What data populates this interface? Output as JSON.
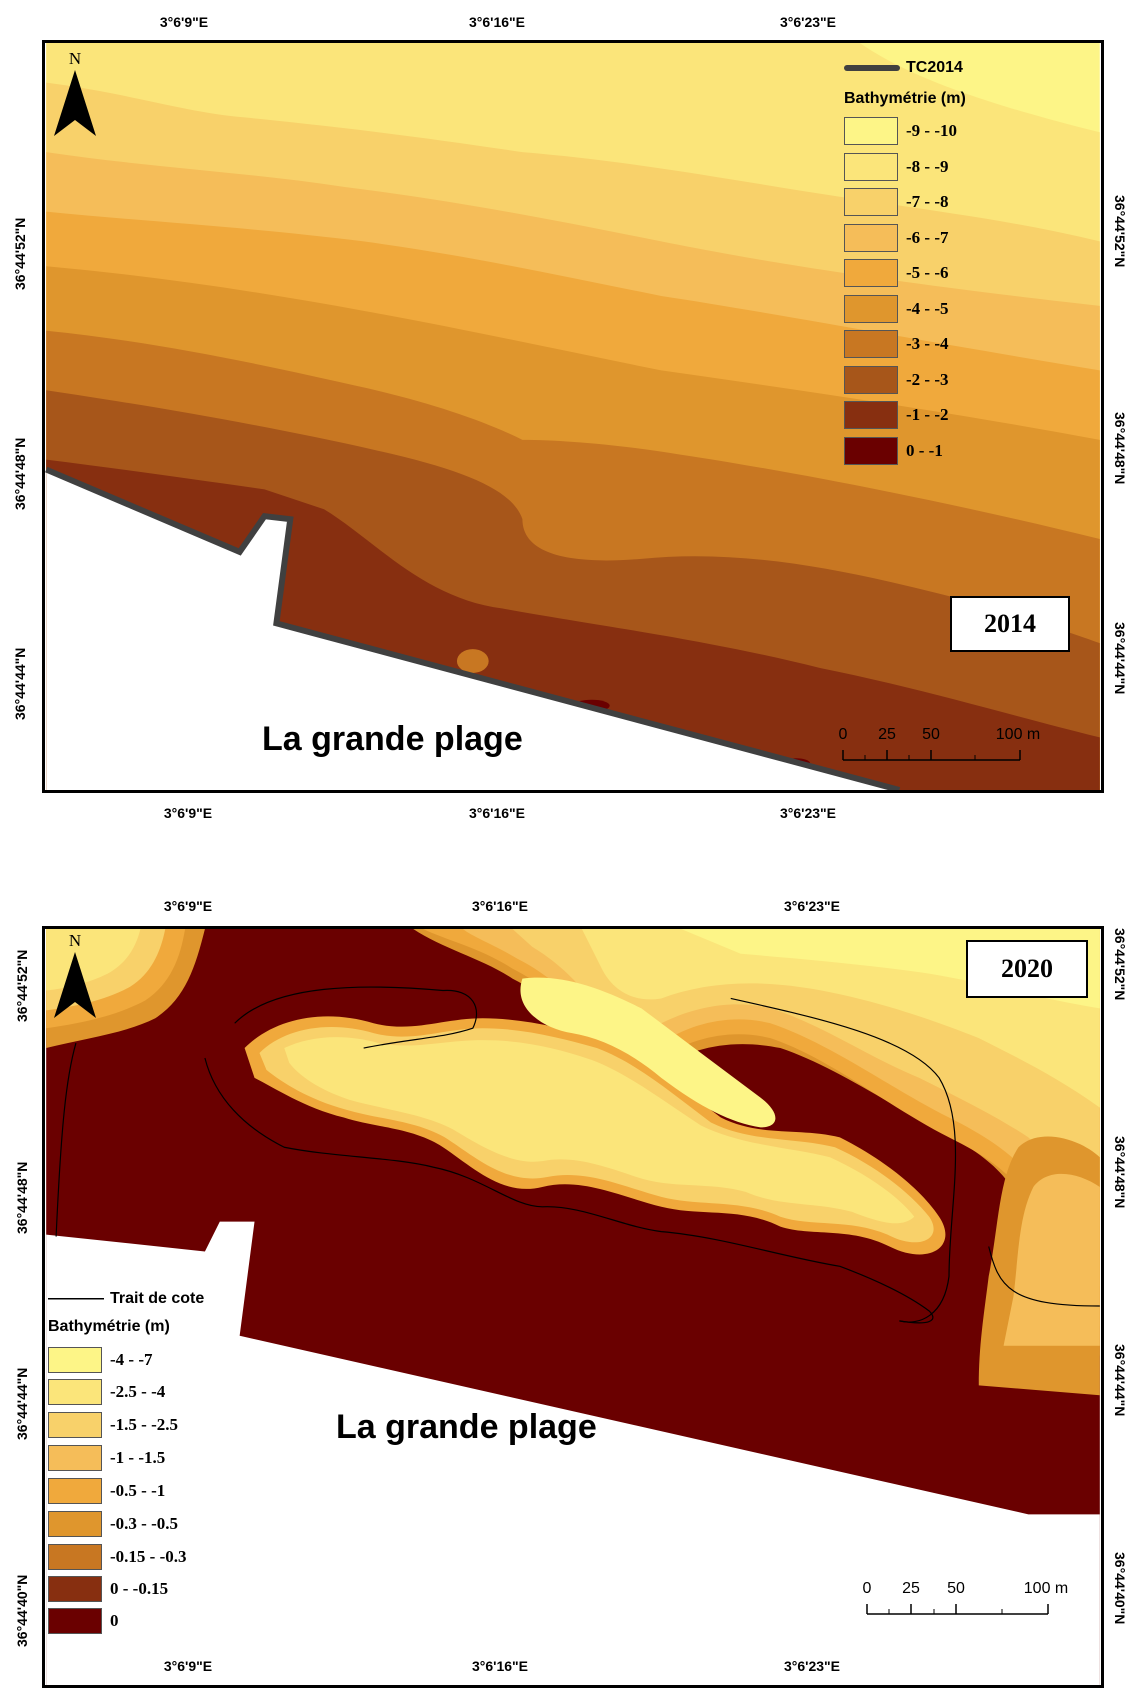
{
  "maps": [
    {
      "year": "2014",
      "top_ticks": [
        "3°6'9\"E",
        "3°6'16\"E",
        "3°6'23\"E"
      ],
      "bottom_ticks": [
        "3°6'9\"E",
        "3°6'16\"E",
        "3°6'23\"E"
      ],
      "left_ticks": [
        "36°44'52\"N",
        "36°44'48\"N",
        "36°44'44\"N"
      ],
      "right_ticks": [
        "36°44'52\"N",
        "36°44'48\"N",
        "36°44'44\"N"
      ],
      "north_label": "N",
      "shoreline_label": "TC2014",
      "legend_title": "Bathymétrie (m)",
      "legend": [
        {
          "label": "-9 - -10",
          "color": "#fdf587"
        },
        {
          "label": "-8 - -9",
          "color": "#fbe57a"
        },
        {
          "label": "-7 - -8",
          "color": "#f8d16a"
        },
        {
          "label": "-6 - -7",
          "color": "#f5bd59"
        },
        {
          "label": "-5 - -6",
          "color": "#f0a93c"
        },
        {
          "label": "-4 - -5",
          "color": "#df962d"
        },
        {
          "label": "-3 - -4",
          "color": "#c87722"
        },
        {
          "label": "-2 - -3",
          "color": "#a7561a"
        },
        {
          "label": "-1 - -2",
          "color": "#872f10"
        },
        {
          "label": "0 - -1",
          "color": "#6a0000"
        }
      ],
      "place_label": "La grande plage",
      "scale_labels": [
        "0",
        "25",
        "50",
        "100 m"
      ]
    },
    {
      "year": "2020",
      "top_ticks": [
        "3°6'9\"E",
        "3°6'16\"E",
        "3°6'23\"E"
      ],
      "bottom_ticks": [
        "3°6'9\"E",
        "3°6'16\"E",
        "3°6'23\"E"
      ],
      "left_ticks": [
        "36°44'52\"N",
        "36°44'48\"N",
        "36°44'44\"N",
        "36°44'40\"N"
      ],
      "right_ticks": [
        "36°44'52\"N",
        "36°44'48\"N",
        "36°44'44\"N",
        "36°44'40\"N"
      ],
      "north_label": "N",
      "shoreline_label": "Trait de cote",
      "legend_title": "Bathymétrie (m)",
      "legend": [
        {
          "label": "-4 - -7",
          "color": "#fdf587"
        },
        {
          "label": "-2.5 - -4",
          "color": "#fbe57a"
        },
        {
          "label": "-1.5 - -2.5",
          "color": "#f8d16a"
        },
        {
          "label": "-1 - -1.5",
          "color": "#f5bd59"
        },
        {
          "label": "-0.5 - -1",
          "color": "#f0a93c"
        },
        {
          "label": "-0.3 - -0.5",
          "color": "#df962d"
        },
        {
          "label": "-0.15 - -0.3",
          "color": "#c87722"
        },
        {
          "label": "0 - -0.15",
          "color": "#872f10"
        },
        {
          "label": "0",
          "color": "#6a0000"
        }
      ],
      "place_label": "La grande plage",
      "scale_labels": [
        "0",
        "25",
        "50",
        "100 m"
      ]
    }
  ]
}
